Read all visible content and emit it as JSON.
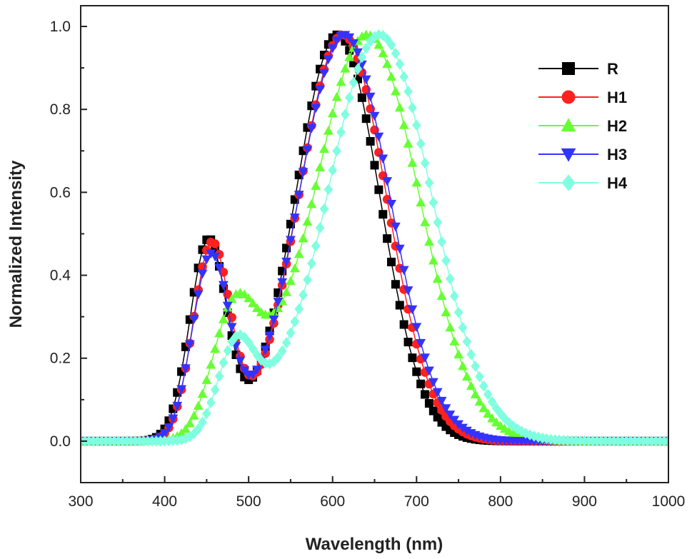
{
  "chart_data": {
    "type": "scatter",
    "xlabel": "Wavelength (nm)",
    "ylabel": "Normalized Intensity",
    "xlim": [
      300,
      1000
    ],
    "ylim": [
      -0.1,
      1.05
    ],
    "xticks": [
      300,
      400,
      500,
      600,
      700,
      800,
      900,
      1000
    ],
    "xtick_labels": [
      "300",
      "400",
      "500",
      "600",
      "700",
      "800",
      "900",
      "1000"
    ],
    "yticks": [
      0.0,
      0.2,
      0.4,
      0.6,
      0.8,
      1.0
    ],
    "ytick_labels": [
      "0.0",
      "0.2",
      "0.4",
      "0.6",
      "0.8",
      "1.0"
    ],
    "x_step": 5,
    "grid": false,
    "legend_position": "top-right",
    "series": [
      {
        "name": "R",
        "color": "#000000",
        "marker": "square",
        "baseline": 0.0,
        "components": [
          {
            "amplitude": 0.48,
            "center": 452,
            "width": 22
          },
          {
            "amplitude": 0.98,
            "center": 606,
            "width": 50
          }
        ]
      },
      {
        "name": "H1",
        "color": "#ff2020",
        "marker": "circle",
        "baseline": 0.0,
        "components": [
          {
            "amplitude": 0.47,
            "center": 456,
            "width": 22
          },
          {
            "amplitude": 0.98,
            "center": 612,
            "width": 52
          }
        ]
      },
      {
        "name": "H2",
        "color": "#66ff33",
        "marker": "triangle-up",
        "baseline": 0.0,
        "components": [
          {
            "amplitude": 0.29,
            "center": 482,
            "width": 26
          },
          {
            "amplitude": 0.98,
            "center": 641,
            "width": 62
          },
          {
            "amplitude": 0.06,
            "center": 525,
            "width": 30
          }
        ]
      },
      {
        "name": "H3",
        "color": "#3333ff",
        "marker": "triangle-down",
        "baseline": 0.0,
        "components": [
          {
            "amplitude": 0.44,
            "center": 455,
            "width": 22
          },
          {
            "amplitude": 0.98,
            "center": 614,
            "width": 54
          }
        ]
      },
      {
        "name": "H4",
        "color": "#7fffdf",
        "marker": "diamond",
        "baseline": 0.0,
        "components": [
          {
            "amplitude": 0.22,
            "center": 485,
            "width": 22
          },
          {
            "amplitude": 0.98,
            "center": 656,
            "width": 62
          },
          {
            "amplitude": 0.04,
            "center": 530,
            "width": 28
          }
        ]
      }
    ]
  }
}
